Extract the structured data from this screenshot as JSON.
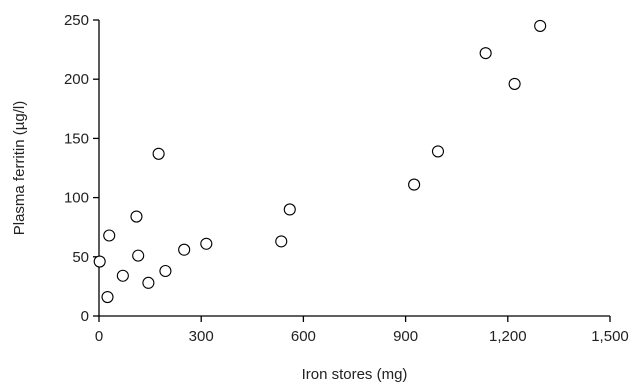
{
  "chart_data": {
    "type": "scatter",
    "xlabel": "Iron stores (mg)",
    "ylabel": "Plasma ferritin (µg/l)",
    "xlim": [
      0,
      1500
    ],
    "ylim": [
      0,
      250
    ],
    "x_ticks": [
      0,
      300,
      600,
      900,
      1200,
      1500
    ],
    "x_tick_labels": [
      "0",
      "300",
      "600",
      "900",
      "1,200",
      "1,500"
    ],
    "y_ticks": [
      0,
      50,
      100,
      150,
      200,
      250
    ],
    "y_tick_labels": [
      "0",
      "50",
      "100",
      "150",
      "200",
      "250"
    ],
    "grid": false,
    "legend": false,
    "series": [
      {
        "marker": "open-circle",
        "color": "#000000",
        "points": [
          {
            "x": 2,
            "y": 46
          },
          {
            "x": 25,
            "y": 16
          },
          {
            "x": 30,
            "y": 68
          },
          {
            "x": 70,
            "y": 34
          },
          {
            "x": 110,
            "y": 84
          },
          {
            "x": 115,
            "y": 51
          },
          {
            "x": 145,
            "y": 28
          },
          {
            "x": 175,
            "y": 137
          },
          {
            "x": 195,
            "y": 38
          },
          {
            "x": 250,
            "y": 56
          },
          {
            "x": 315,
            "y": 61
          },
          {
            "x": 535,
            "y": 63
          },
          {
            "x": 560,
            "y": 90
          },
          {
            "x": 925,
            "y": 111
          },
          {
            "x": 995,
            "y": 139
          },
          {
            "x": 1135,
            "y": 222
          },
          {
            "x": 1220,
            "y": 196
          },
          {
            "x": 1295,
            "y": 245
          }
        ]
      }
    ]
  }
}
